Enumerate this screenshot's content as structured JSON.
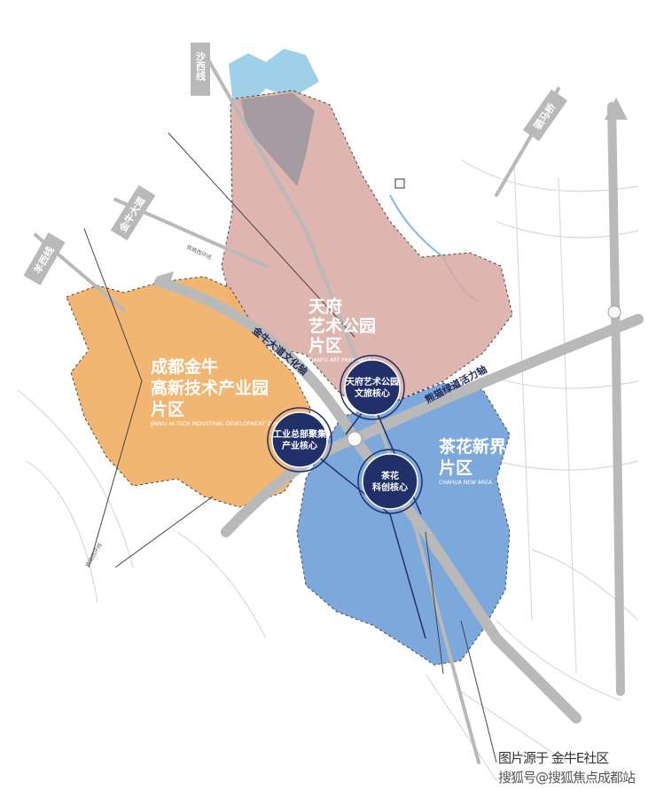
{
  "colors": {
    "art_park": "#d9a8a2",
    "jinniu": "#f0b26a",
    "chahua": "#6f9fd8",
    "core": "#22306a",
    "road": "#b9b9b9",
    "water": "#9fd0ea"
  },
  "zones": [
    {
      "name": "天府艺术公园片区",
      "lines": [
        "天府",
        "艺术公园",
        "片区"
      ],
      "sub": "TIANFU ART PARK AREA"
    },
    {
      "name": "成都金牛高新技术产业园片区",
      "lines": [
        "成都金牛",
        "高新技术产业园",
        "片区"
      ],
      "sub": "JINNIU HI-TECH INDUSTRIAL DEVELOPMENT ZONE"
    },
    {
      "name": "茶花新界片区",
      "lines": [
        "茶花新界",
        "片区"
      ],
      "sub": "CHAHUA NEW AREA"
    }
  ],
  "cores": [
    {
      "lines": [
        "天府艺术公园",
        "文旅核心"
      ]
    },
    {
      "lines": [
        "工业总部聚集",
        "产业核心"
      ]
    },
    {
      "lines": [
        "茶花",
        "科创核心"
      ]
    }
  ],
  "axes": [
    "金牛大道文化轴",
    "熊猫绿道活力轴"
  ],
  "roads": [
    "沙西线",
    "金牛大道",
    "羊西线",
    "驷马桥",
    "铁路西环线",
    "铁路西环线"
  ],
  "caption": "图片源于 金牛E社区",
  "watermark": "搜狐号@搜狐焦点成都站"
}
